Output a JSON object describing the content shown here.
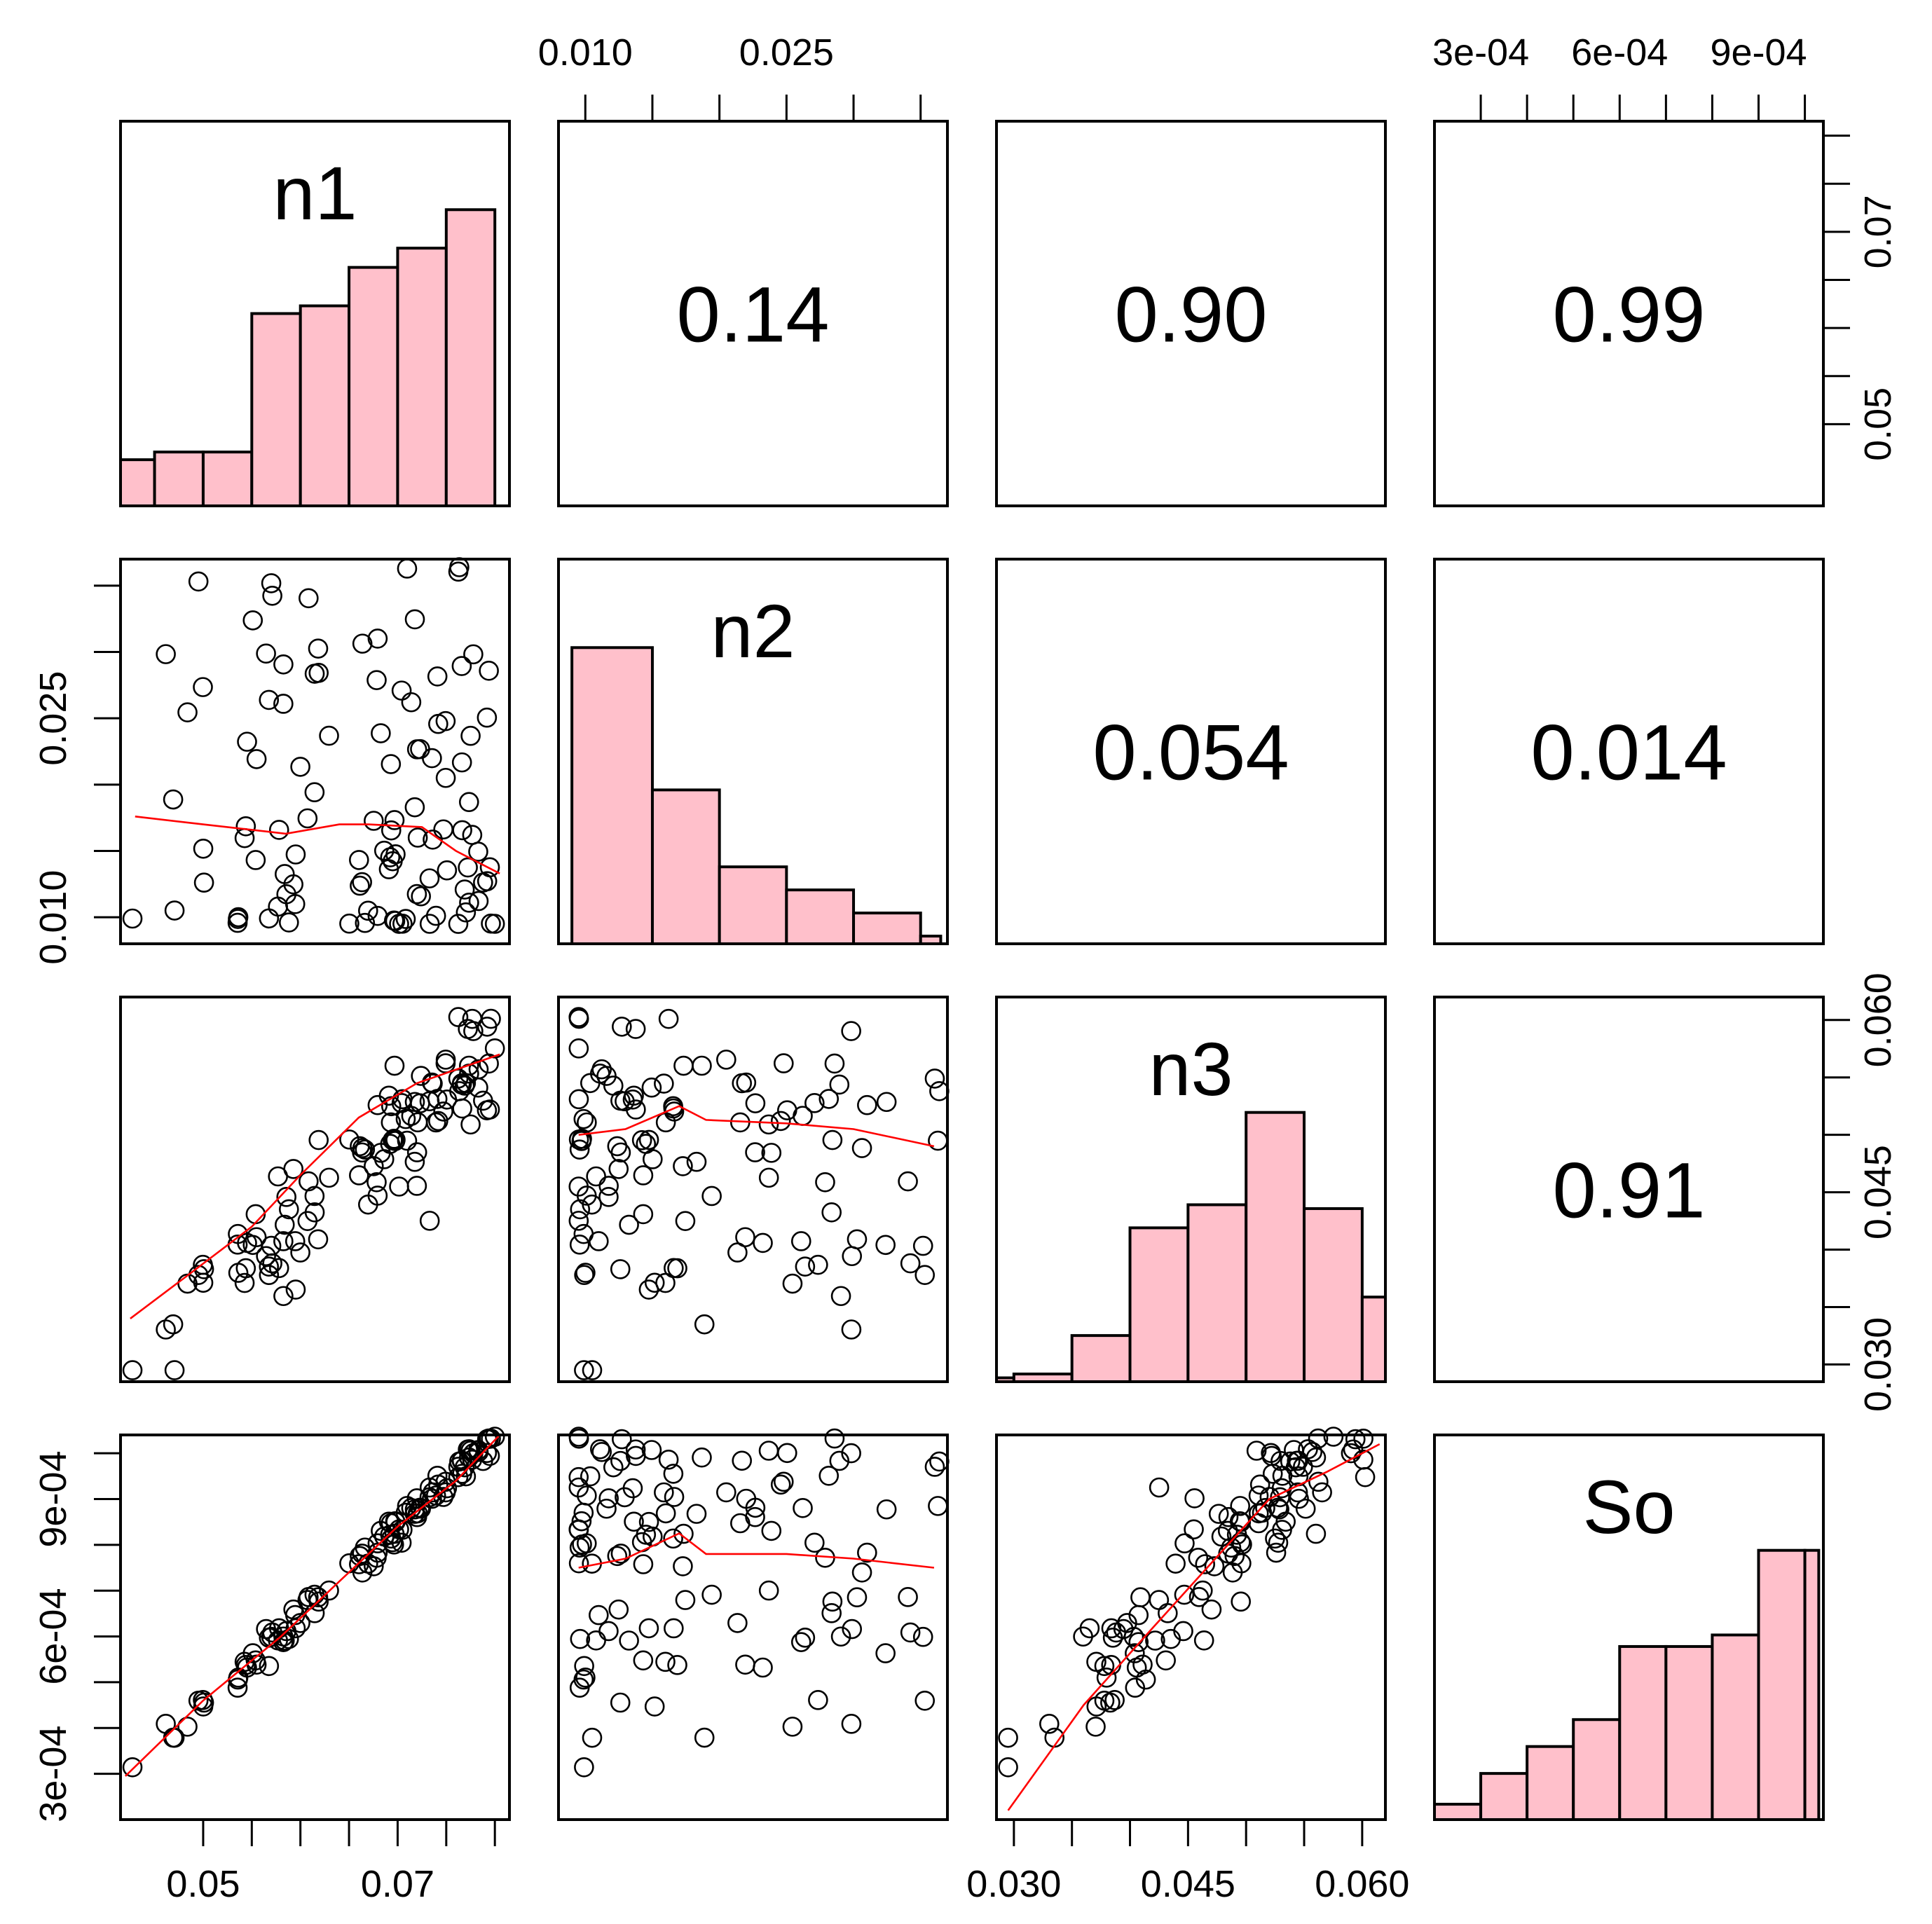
{
  "colors": {
    "bar_fill": "#ffc0cb",
    "smooth_line": "#ff0000",
    "points": "#000000"
  },
  "chart_data": {
    "type": "pairs",
    "variables": [
      "n1",
      "n2",
      "n3",
      "So"
    ],
    "correlations": [
      {
        "pair": [
          "n1",
          "n2"
        ],
        "label": "0.14"
      },
      {
        "pair": [
          "n1",
          "n3"
        ],
        "label": "0.90"
      },
      {
        "pair": [
          "n1",
          "So"
        ],
        "label": "0.99"
      },
      {
        "pair": [
          "n2",
          "n3"
        ],
        "label": "0.054"
      },
      {
        "pair": [
          "n2",
          "So"
        ],
        "label": "0.014"
      },
      {
        "pair": [
          "n3",
          "So"
        ],
        "label": "0.91"
      }
    ],
    "axes": {
      "n1": {
        "range": [
          0.0415,
          0.0815
        ],
        "ticks": [
          0.05,
          0.055,
          0.06,
          0.065,
          0.07,
          0.075,
          0.08
        ],
        "tick_labels": {
          "0.05": "0.05",
          "0.07": "0.07"
        },
        "label_axis": "bottom"
      },
      "n2": {
        "range": [
          0.008,
          0.037
        ],
        "ticks": [
          0.01,
          0.015,
          0.02,
          0.025,
          0.03,
          0.035
        ],
        "tick_labels": {
          "0.01": "0.010",
          "0.025": "0.025"
        },
        "label_axis": "top"
      },
      "n3": {
        "range": [
          0.0285,
          0.062
        ],
        "ticks": [
          0.03,
          0.035,
          0.04,
          0.045,
          0.05,
          0.055,
          0.06
        ],
        "tick_labels": {
          "0.03": "0.030",
          "0.045": "0.045",
          "0.06": "0.060"
        },
        "label_axis": "bottom"
      },
      "So": {
        "range": [
          0.0002,
          0.00104
        ],
        "ticks": [
          0.0003,
          0.0004,
          0.0005,
          0.0006,
          0.0007,
          0.0008,
          0.0009,
          0.001
        ],
        "tick_labels": {
          "0.0003": "3e-04",
          "0.0006": "6e-04",
          "0.0009": "9e-04"
        },
        "label_axis": "top"
      }
    },
    "histograms": {
      "n1": {
        "breaks": [
          0.0415,
          0.045,
          0.05,
          0.055,
          0.06,
          0.065,
          0.07,
          0.075,
          0.08
        ],
        "relative_heights": [
          0.12,
          0.14,
          0.14,
          0.5,
          0.52,
          0.62,
          0.67,
          0.77
        ]
      },
      "n2": {
        "breaks": [
          0.009,
          0.015,
          0.02,
          0.025,
          0.03,
          0.035,
          0.0365
        ],
        "relative_heights": [
          0.77,
          0.4,
          0.2,
          0.14,
          0.08,
          0.02
        ]
      },
      "n3": {
        "breaks": [
          0.0285,
          0.03,
          0.035,
          0.04,
          0.045,
          0.05,
          0.055,
          0.06,
          0.062
        ],
        "relative_heights": [
          0.01,
          0.02,
          0.12,
          0.4,
          0.46,
          0.7,
          0.45,
          0.22
        ]
      },
      "So": {
        "breaks": [
          0.0002,
          0.0003,
          0.0004,
          0.0005,
          0.0006,
          0.0007,
          0.0008,
          0.0009,
          0.001,
          0.00103
        ],
        "relative_heights": [
          0.04,
          0.12,
          0.19,
          0.26,
          0.45,
          0.45,
          0.48,
          0.7,
          0.7
        ]
      }
    },
    "smooth_lines": {
      "n1_n2": [
        [
          0.043,
          0.0176
        ],
        [
          0.05,
          0.017
        ],
        [
          0.0585,
          0.0163
        ],
        [
          0.064,
          0.017
        ],
        [
          0.067,
          0.017
        ],
        [
          0.0725,
          0.0168
        ],
        [
          0.076,
          0.015
        ],
        [
          0.0805,
          0.0133
        ]
      ],
      "n1_n3": [
        [
          0.0425,
          0.034
        ],
        [
          0.048,
          0.0375
        ],
        [
          0.055,
          0.042
        ],
        [
          0.06,
          0.0465
        ],
        [
          0.066,
          0.0515
        ],
        [
          0.072,
          0.0545
        ],
        [
          0.0805,
          0.057
        ]
      ],
      "n1_So": [
        [
          0.042,
          0.000295
        ],
        [
          0.05,
          0.00046
        ],
        [
          0.058,
          0.0006
        ],
        [
          0.064,
          0.00072
        ],
        [
          0.07,
          0.00084
        ],
        [
          0.076,
          0.00094
        ],
        [
          0.0805,
          0.00104
        ]
      ],
      "n2_n3": [
        [
          0.0095,
          0.05
        ],
        [
          0.013,
          0.0505
        ],
        [
          0.017,
          0.0525
        ],
        [
          0.019,
          0.0513
        ],
        [
          0.025,
          0.051
        ],
        [
          0.03,
          0.0505
        ],
        [
          0.036,
          0.049
        ]
      ],
      "n2_So": [
        [
          0.0095,
          0.00075
        ],
        [
          0.013,
          0.00077
        ],
        [
          0.017,
          0.000825
        ],
        [
          0.019,
          0.00078
        ],
        [
          0.025,
          0.00078
        ],
        [
          0.03,
          0.00077
        ],
        [
          0.036,
          0.00075
        ]
      ],
      "n3_So": [
        [
          0.0295,
          0.00022
        ],
        [
          0.036,
          0.00045
        ],
        [
          0.042,
          0.00062
        ],
        [
          0.047,
          0.00076
        ],
        [
          0.052,
          0.0009
        ],
        [
          0.057,
          0.00096
        ],
        [
          0.0615,
          0.00102
        ]
      ]
    }
  }
}
